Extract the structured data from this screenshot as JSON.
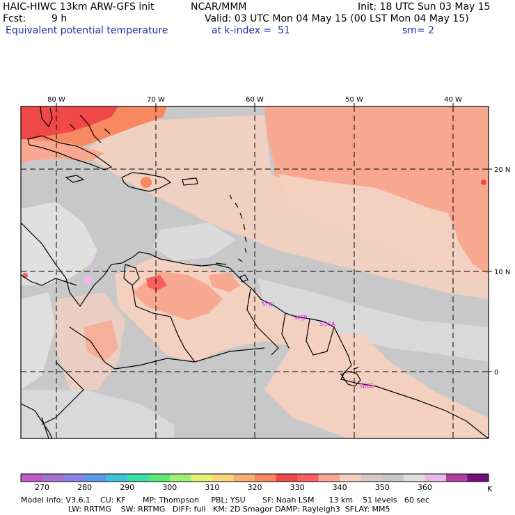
{
  "header": {
    "model_title": "HAIC-HIWC 13km ARW-GFS init",
    "org": "NCAR/MMM",
    "init": "Init: 18 UTC Sun 03 May 15",
    "fcst_label": "Fcst:",
    "fcst_value": "9 h",
    "valid": "Valid: 03 UTC Mon 04 May 15 (00 LST Mon 04 May 15)",
    "field_name": "Equivalent potential temperature",
    "level": "at k-index =  51",
    "smooth": "sm= 2"
  },
  "map": {
    "lon_labels": [
      "80 W",
      "70 W",
      "60 W",
      "50 W",
      "40 W"
    ],
    "lat_labels": [
      "20 N",
      "10 N",
      "0"
    ],
    "stations": [
      "SYBI",
      "SMJP",
      "SOCA",
      "SBBE"
    ]
  },
  "colorbar": {
    "unit": "K",
    "tick_labels": [
      "270",
      "280",
      "290",
      "300",
      "310",
      "320",
      "330",
      "340",
      "350",
      "360"
    ],
    "colors": [
      "#c158c8",
      "#a872d0",
      "#8a82e8",
      "#5a9ae8",
      "#3cc4d8",
      "#3ae0a8",
      "#5ae878",
      "#a0f070",
      "#e4f070",
      "#f8d878",
      "#f8b070",
      "#f88860",
      "#f04848",
      "#f86060",
      "#f8a890",
      "#f4d0c0",
      "#d8c8c0",
      "#c8c8c8",
      "#e0e0e0",
      "#e8b8e8",
      "#b040a0",
      "#701078"
    ]
  },
  "footer": {
    "line1": "Model Info: V3.6.1    CU: KF       MP: Thompson     PBL: YSU       SF: Noah LSM      13 km    51 levels   60 sec",
    "line2": "LW: RRTMG    SW: RRTMG   DIFF: full   KM: 2D Smagor DAMP: Rayleigh3  SFLAY: MM5"
  }
}
